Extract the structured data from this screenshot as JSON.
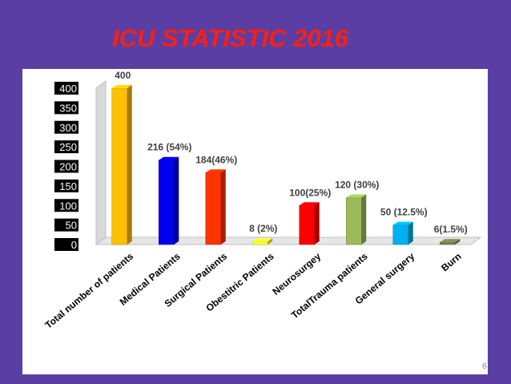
{
  "slide": {
    "title": "ICU STATISTIC 2016",
    "page_number": "6"
  },
  "colors": {
    "background": "#5b3ea3",
    "title": "#ff1f0f",
    "panel": "#ffffff"
  },
  "chart_data": {
    "type": "bar",
    "title": "",
    "xlabel": "",
    "ylabel": "",
    "ylim": [
      0,
      400
    ],
    "yticks": [
      0,
      50,
      100,
      150,
      200,
      250,
      300,
      350,
      400
    ],
    "grid": false,
    "categories": [
      "Total number of patients",
      "Medical Patients",
      "Surgical Patients",
      "Obestitric Patients",
      "Neurosurgey",
      "TotalTrauma patients",
      "General surgery",
      "Burn"
    ],
    "values": [
      400,
      216,
      184,
      8,
      100,
      120,
      50,
      6
    ],
    "data_labels": [
      "400",
      "216 (54%)",
      "184(46%)",
      "8 (2%)",
      "100(25%)",
      "120 (30%)",
      "50 (12.5%)",
      "6(1.5%)"
    ],
    "bar_colors": [
      "#ffc000",
      "#0000ee",
      "#ff3300",
      "#ffff33",
      "#ff0000",
      "#9bbb59",
      "#00b0f0",
      "#7f7f50"
    ]
  }
}
